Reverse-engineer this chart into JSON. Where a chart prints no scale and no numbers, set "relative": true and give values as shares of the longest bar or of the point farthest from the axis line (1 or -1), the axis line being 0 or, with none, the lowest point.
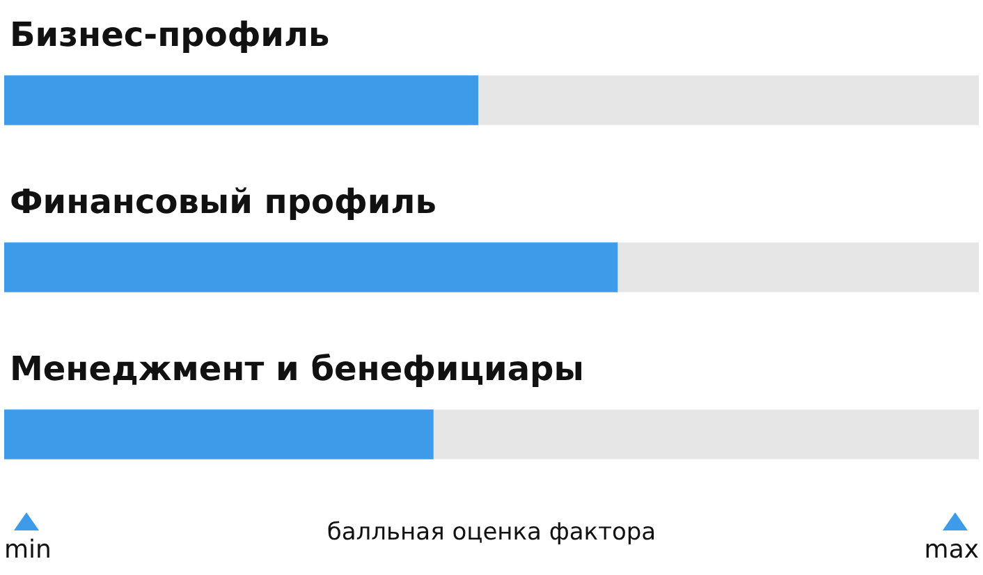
{
  "chart_data": {
    "type": "bar",
    "orientation": "horizontal",
    "relative": true,
    "categories": [
      "Бизнес-профиль",
      "Финансовый профиль",
      "Менеджмент и бенефициары"
    ],
    "series": [
      {
        "color": "#3d9be9",
        "values": [
          0.486,
          0.629,
          0.44
        ]
      },
      {
        "color": "#e6e6e6",
        "values": [
          0.514,
          0.371,
          0.56
        ]
      }
    ],
    "stacked": true,
    "annotations": [
      "min",
      "max"
    ],
    "xlabel": "балльная оценка фактора",
    "legend": false
  }
}
